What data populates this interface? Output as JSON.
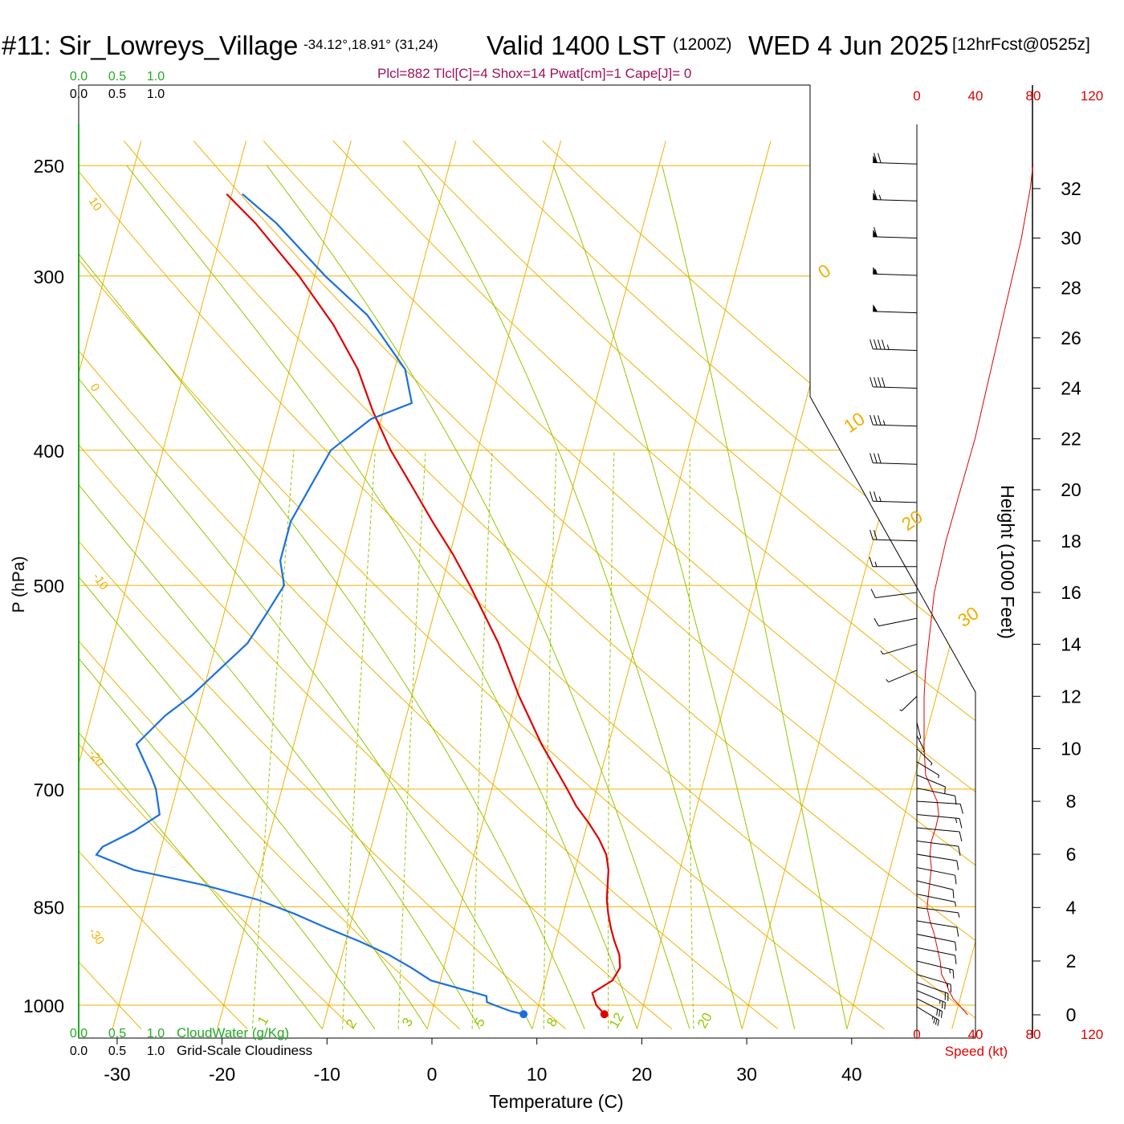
{
  "header": {
    "station": "#11: Sir_Lowreys_Village",
    "coords": "-34.12°,18.91° (31,24)",
    "valid": "Valid 1400 LST",
    "utc": "(1200Z)",
    "date": "WED 4 Jun 2025",
    "forecast": "[12hrFcst@0525z]",
    "params": "Plcl=882 Tlcl[C]=4 Shox=14 Pwat[cm]=1 Cape[J]= 0"
  },
  "colors": {
    "temperature": "#e00000",
    "dewpoint": "#1a6fe0",
    "isobar_isotherm": "#f0b000",
    "dry_adiabat": "#f0b000",
    "moist_adiabat": "#90c800",
    "mixing_ratio": "#90c800",
    "cloudwater": "#22aa22",
    "speed": "#e00000",
    "params": "#a0105a"
  },
  "chart_data": {
    "type": "skew-t",
    "xlabel": "Temperature (C)",
    "ylabel": "P (hPa)",
    "y2label": "Height (1000 Feet)",
    "x_ticks": [
      -30,
      -20,
      -10,
      0,
      10,
      20,
      30,
      40
    ],
    "p_ticks": [
      250,
      300,
      400,
      500,
      700,
      850,
      1000
    ],
    "height_ticks": [
      0,
      2,
      4,
      6,
      8,
      10,
      12,
      14,
      16,
      18,
      20,
      22,
      24,
      26,
      28,
      30,
      32
    ],
    "xlim_bottom": [
      -34,
      46
    ],
    "ylim_p": [
      1030,
      250
    ],
    "skew_c_per_decade": 35.7,
    "dry_adiabat_labels": [
      "10",
      "0",
      "-10",
      "-20",
      "-30"
    ],
    "moist_adiabat_labels": [
      "0",
      "10",
      "20",
      "30"
    ],
    "mixing_ratio_labels": [
      "1",
      "2",
      "3",
      "5",
      "8",
      "12",
      "20"
    ],
    "mixing_ratio_values": [
      1,
      2,
      3,
      5,
      8,
      12,
      20
    ],
    "temperature_profile": [
      [
        1015,
        16.5
      ],
      [
        1000,
        15.5
      ],
      [
        980,
        14.8
      ],
      [
        960,
        16.4
      ],
      [
        940,
        16.8
      ],
      [
        920,
        16.4
      ],
      [
        900,
        15.6
      ],
      [
        880,
        14.9
      ],
      [
        860,
        14.3
      ],
      [
        840,
        13.8
      ],
      [
        820,
        13.5
      ],
      [
        800,
        13.2
      ],
      [
        780,
        12.6
      ],
      [
        760,
        11.5
      ],
      [
        740,
        10.1
      ],
      [
        720,
        8.5
      ],
      [
        700,
        7.2
      ],
      [
        680,
        5.8
      ],
      [
        650,
        3.6
      ],
      [
        600,
        0.2
      ],
      [
        550,
        -3.1
      ],
      [
        500,
        -7.3
      ],
      [
        475,
        -9.7
      ],
      [
        450,
        -12.5
      ],
      [
        425,
        -15.3
      ],
      [
        400,
        -18.3
      ],
      [
        375,
        -21.0
      ],
      [
        350,
        -23.5
      ],
      [
        325,
        -27.0
      ],
      [
        300,
        -31.5
      ],
      [
        275,
        -37.0
      ],
      [
        262,
        -40.5
      ]
    ],
    "dewpoint_profile": [
      [
        1015,
        8.8
      ],
      [
        1010,
        7.5
      ],
      [
        1000,
        5.8
      ],
      [
        995,
        5.0
      ],
      [
        985,
        4.8
      ],
      [
        960,
        -0.9
      ],
      [
        940,
        -3.1
      ],
      [
        920,
        -5.6
      ],
      [
        900,
        -8.7
      ],
      [
        880,
        -12.2
      ],
      [
        860,
        -15.6
      ],
      [
        840,
        -19.5
      ],
      [
        820,
        -25.0
      ],
      [
        800,
        -32.0
      ],
      [
        780,
        -36.0
      ],
      [
        770,
        -35.6
      ],
      [
        750,
        -33.0
      ],
      [
        730,
        -31.0
      ],
      [
        700,
        -32.0
      ],
      [
        685,
        -32.8
      ],
      [
        650,
        -35.0
      ],
      [
        620,
        -33.0
      ],
      [
        600,
        -31.0
      ],
      [
        550,
        -27.0
      ],
      [
        525,
        -26.0
      ],
      [
        500,
        -25.0
      ],
      [
        480,
        -26.0
      ],
      [
        450,
        -26.0
      ],
      [
        400,
        -24.0
      ],
      [
        380,
        -21.0
      ],
      [
        370,
        -17.5
      ],
      [
        350,
        -19.0
      ],
      [
        320,
        -24.0
      ],
      [
        300,
        -29.0
      ],
      [
        275,
        -35.0
      ],
      [
        262,
        -39.0
      ]
    ],
    "surface_temperature": 16.5,
    "surface_dewpoint": 8.8,
    "speed_axis": {
      "label": "Speed (kt)",
      "ticks": [
        0,
        40,
        80,
        120
      ]
    },
    "cloud_axis": {
      "cloudwater_label": "CloudWater (g/Kg)",
      "cloudiness_label": "Grid-Scale Cloudiness",
      "ticks": [
        "0.0",
        "0.5",
        "1.0"
      ]
    },
    "wind_speed_profile": [
      [
        0,
        35
      ],
      [
        0.3,
        30
      ],
      [
        0.6,
        25
      ],
      [
        0.9,
        22
      ],
      [
        1.2,
        20
      ],
      [
        1.5,
        17
      ],
      [
        2,
        16
      ],
      [
        2.5,
        14
      ],
      [
        3,
        12
      ],
      [
        3.5,
        9
      ],
      [
        4,
        7
      ],
      [
        4.5,
        8
      ],
      [
        5,
        9
      ],
      [
        5.5,
        10
      ],
      [
        6,
        9
      ],
      [
        6.5,
        10
      ],
      [
        7,
        13
      ],
      [
        7.5,
        15
      ],
      [
        8,
        14
      ],
      [
        8.5,
        10
      ],
      [
        9,
        6
      ],
      [
        10,
        5
      ],
      [
        11,
        5
      ],
      [
        12,
        5
      ],
      [
        13,
        6
      ],
      [
        14,
        8
      ],
      [
        16,
        12
      ],
      [
        18,
        20
      ],
      [
        20,
        30
      ],
      [
        22,
        40
      ],
      [
        24,
        48
      ],
      [
        26,
        56
      ],
      [
        28,
        64
      ],
      [
        30,
        72
      ],
      [
        32,
        78
      ],
      [
        33,
        80
      ]
    ],
    "wind_barbs": [
      {
        "h": 0.3,
        "dir": 330,
        "spd": 35
      },
      {
        "h": 0.6,
        "dir": 325,
        "spd": 30
      },
      {
        "h": 0.9,
        "dir": 320,
        "spd": 25
      },
      {
        "h": 1.2,
        "dir": 315,
        "spd": 22
      },
      {
        "h": 1.5,
        "dir": 310,
        "spd": 18
      },
      {
        "h": 2.0,
        "dir": 305,
        "spd": 16
      },
      {
        "h": 2.5,
        "dir": 300,
        "spd": 14
      },
      {
        "h": 3.0,
        "dir": 300,
        "spd": 12
      },
      {
        "h": 3.5,
        "dir": 295,
        "spd": 10
      },
      {
        "h": 4.0,
        "dir": 290,
        "spd": 8
      },
      {
        "h": 4.5,
        "dir": 300,
        "spd": 9
      },
      {
        "h": 5.0,
        "dir": 305,
        "spd": 10
      },
      {
        "h": 5.5,
        "dir": 300,
        "spd": 11
      },
      {
        "h": 6.0,
        "dir": 295,
        "spd": 10
      },
      {
        "h": 6.5,
        "dir": 290,
        "spd": 10
      },
      {
        "h": 7.0,
        "dir": 285,
        "spd": 13
      },
      {
        "h": 7.5,
        "dir": 285,
        "spd": 15
      },
      {
        "h": 8.0,
        "dir": 280,
        "spd": 14
      },
      {
        "h": 8.5,
        "dir": 300,
        "spd": 12
      },
      {
        "h": 9.0,
        "dir": 320,
        "spd": 10
      },
      {
        "h": 9.5,
        "dir": 330,
        "spd": 9
      },
      {
        "h": 10,
        "dir": 340,
        "spd": 8
      },
      {
        "h": 10.5,
        "dir": 350,
        "spd": 7
      },
      {
        "h": 11,
        "dir": 355,
        "spd": 6
      },
      {
        "h": 12,
        "dir": 20,
        "spd": 5
      },
      {
        "h": 13,
        "dir": 40,
        "spd": 6
      },
      {
        "h": 14,
        "dir": 50,
        "spd": 8
      },
      {
        "h": 15,
        "dir": 60,
        "spd": 10
      },
      {
        "h": 16,
        "dir": 70,
        "spd": 12
      },
      {
        "h": 17,
        "dir": 90,
        "spd": 15
      },
      {
        "h": 18,
        "dir": 95,
        "spd": 20
      },
      {
        "h": 19.5,
        "dir": 95,
        "spd": 25
      },
      {
        "h": 21,
        "dir": 95,
        "spd": 30
      },
      {
        "h": 22.5,
        "dir": 95,
        "spd": 35
      },
      {
        "h": 24,
        "dir": 95,
        "spd": 40
      },
      {
        "h": 25.5,
        "dir": 95,
        "spd": 45
      },
      {
        "h": 27,
        "dir": 95,
        "spd": 50
      },
      {
        "h": 28.5,
        "dir": 95,
        "spd": 55
      },
      {
        "h": 30,
        "dir": 95,
        "spd": 60
      },
      {
        "h": 31.5,
        "dir": 95,
        "spd": 65
      },
      {
        "h": 33,
        "dir": 95,
        "spd": 70
      }
    ]
  }
}
